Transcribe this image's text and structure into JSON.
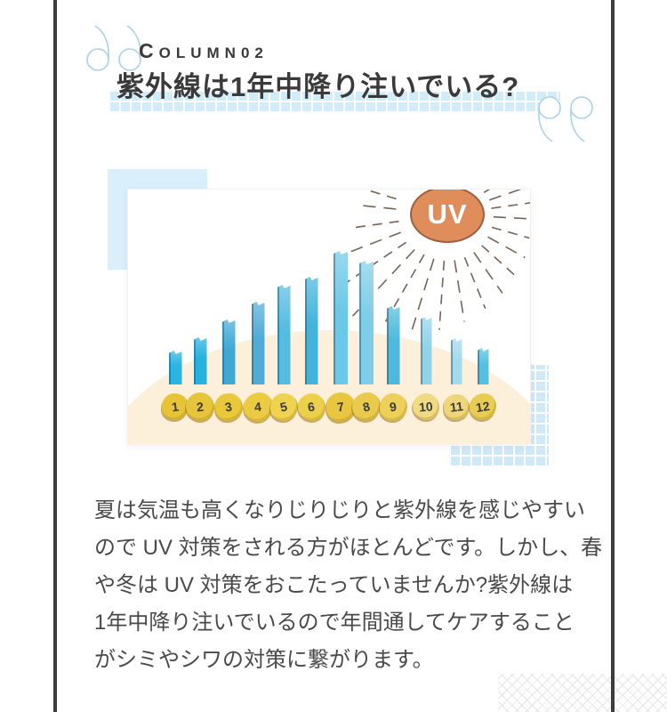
{
  "header": {
    "section_label": "COLUMN02",
    "title": "紫外線は1年中降り注いでいる?"
  },
  "body": {
    "lines": [
      "夏は気温も高くなりじりじりと紫外線を感じやすい",
      "ので UV 対策をされる方がほとんどです。しかし、春",
      "や冬は UV 対策をおこたっていませんか?紫外線は",
      "1年中降り注いでいるので年間通してケアすること",
      "がシミやシワの対策に繋がります。"
    ]
  },
  "illustration": {
    "sun_label": "UV",
    "bar_colors": [
      "#2ab4e2",
      "#26b1df",
      "#3fa9d6",
      "#4fabd8",
      "#54bce0",
      "#42b4dc",
      "#6cc8e8",
      "#7fcde8",
      "#4db9dc",
      "#90d3e9",
      "#a3daee",
      "#55c0e2"
    ],
    "badge_colors": [
      "#e7c338",
      "#e6c43c",
      "#e9c83a",
      "#ecca42",
      "#eed250",
      "#ecd049",
      "#e8c63f",
      "#e9ca4d",
      "#ecd058",
      "#f0db82",
      "#eed67b",
      "#e9cd52"
    ]
  },
  "chart_data": {
    "type": "bar",
    "categories": [
      "1",
      "2",
      "3",
      "4",
      "5",
      "6",
      "7",
      "8",
      "9",
      "10",
      "11",
      "12"
    ],
    "values": [
      38,
      53,
      73,
      93,
      112,
      121,
      150,
      139,
      88,
      76,
      52,
      41
    ],
    "title": "",
    "xlabel": "",
    "ylabel": "",
    "ylim": [
      0,
      160
    ],
    "legend": false,
    "note": "relative bar heights in px as depicted; no numeric axis shown"
  },
  "colors": {
    "frame_dark": "#3c3c3c",
    "quote_blue": "#a9d2e8",
    "highlight_grid_blue": "#d3ecfa",
    "deco_square_blue": "#d9effb",
    "deco_grid_blue": "#cfe9f8",
    "hill_cream": "#fcf0da",
    "sun_orange": "#e08d5c",
    "sun_border": "#9c5f40",
    "ray_brown": "#766459",
    "pattern_gray": "#e4e4e4",
    "text_dark": "#3a3a3a"
  }
}
